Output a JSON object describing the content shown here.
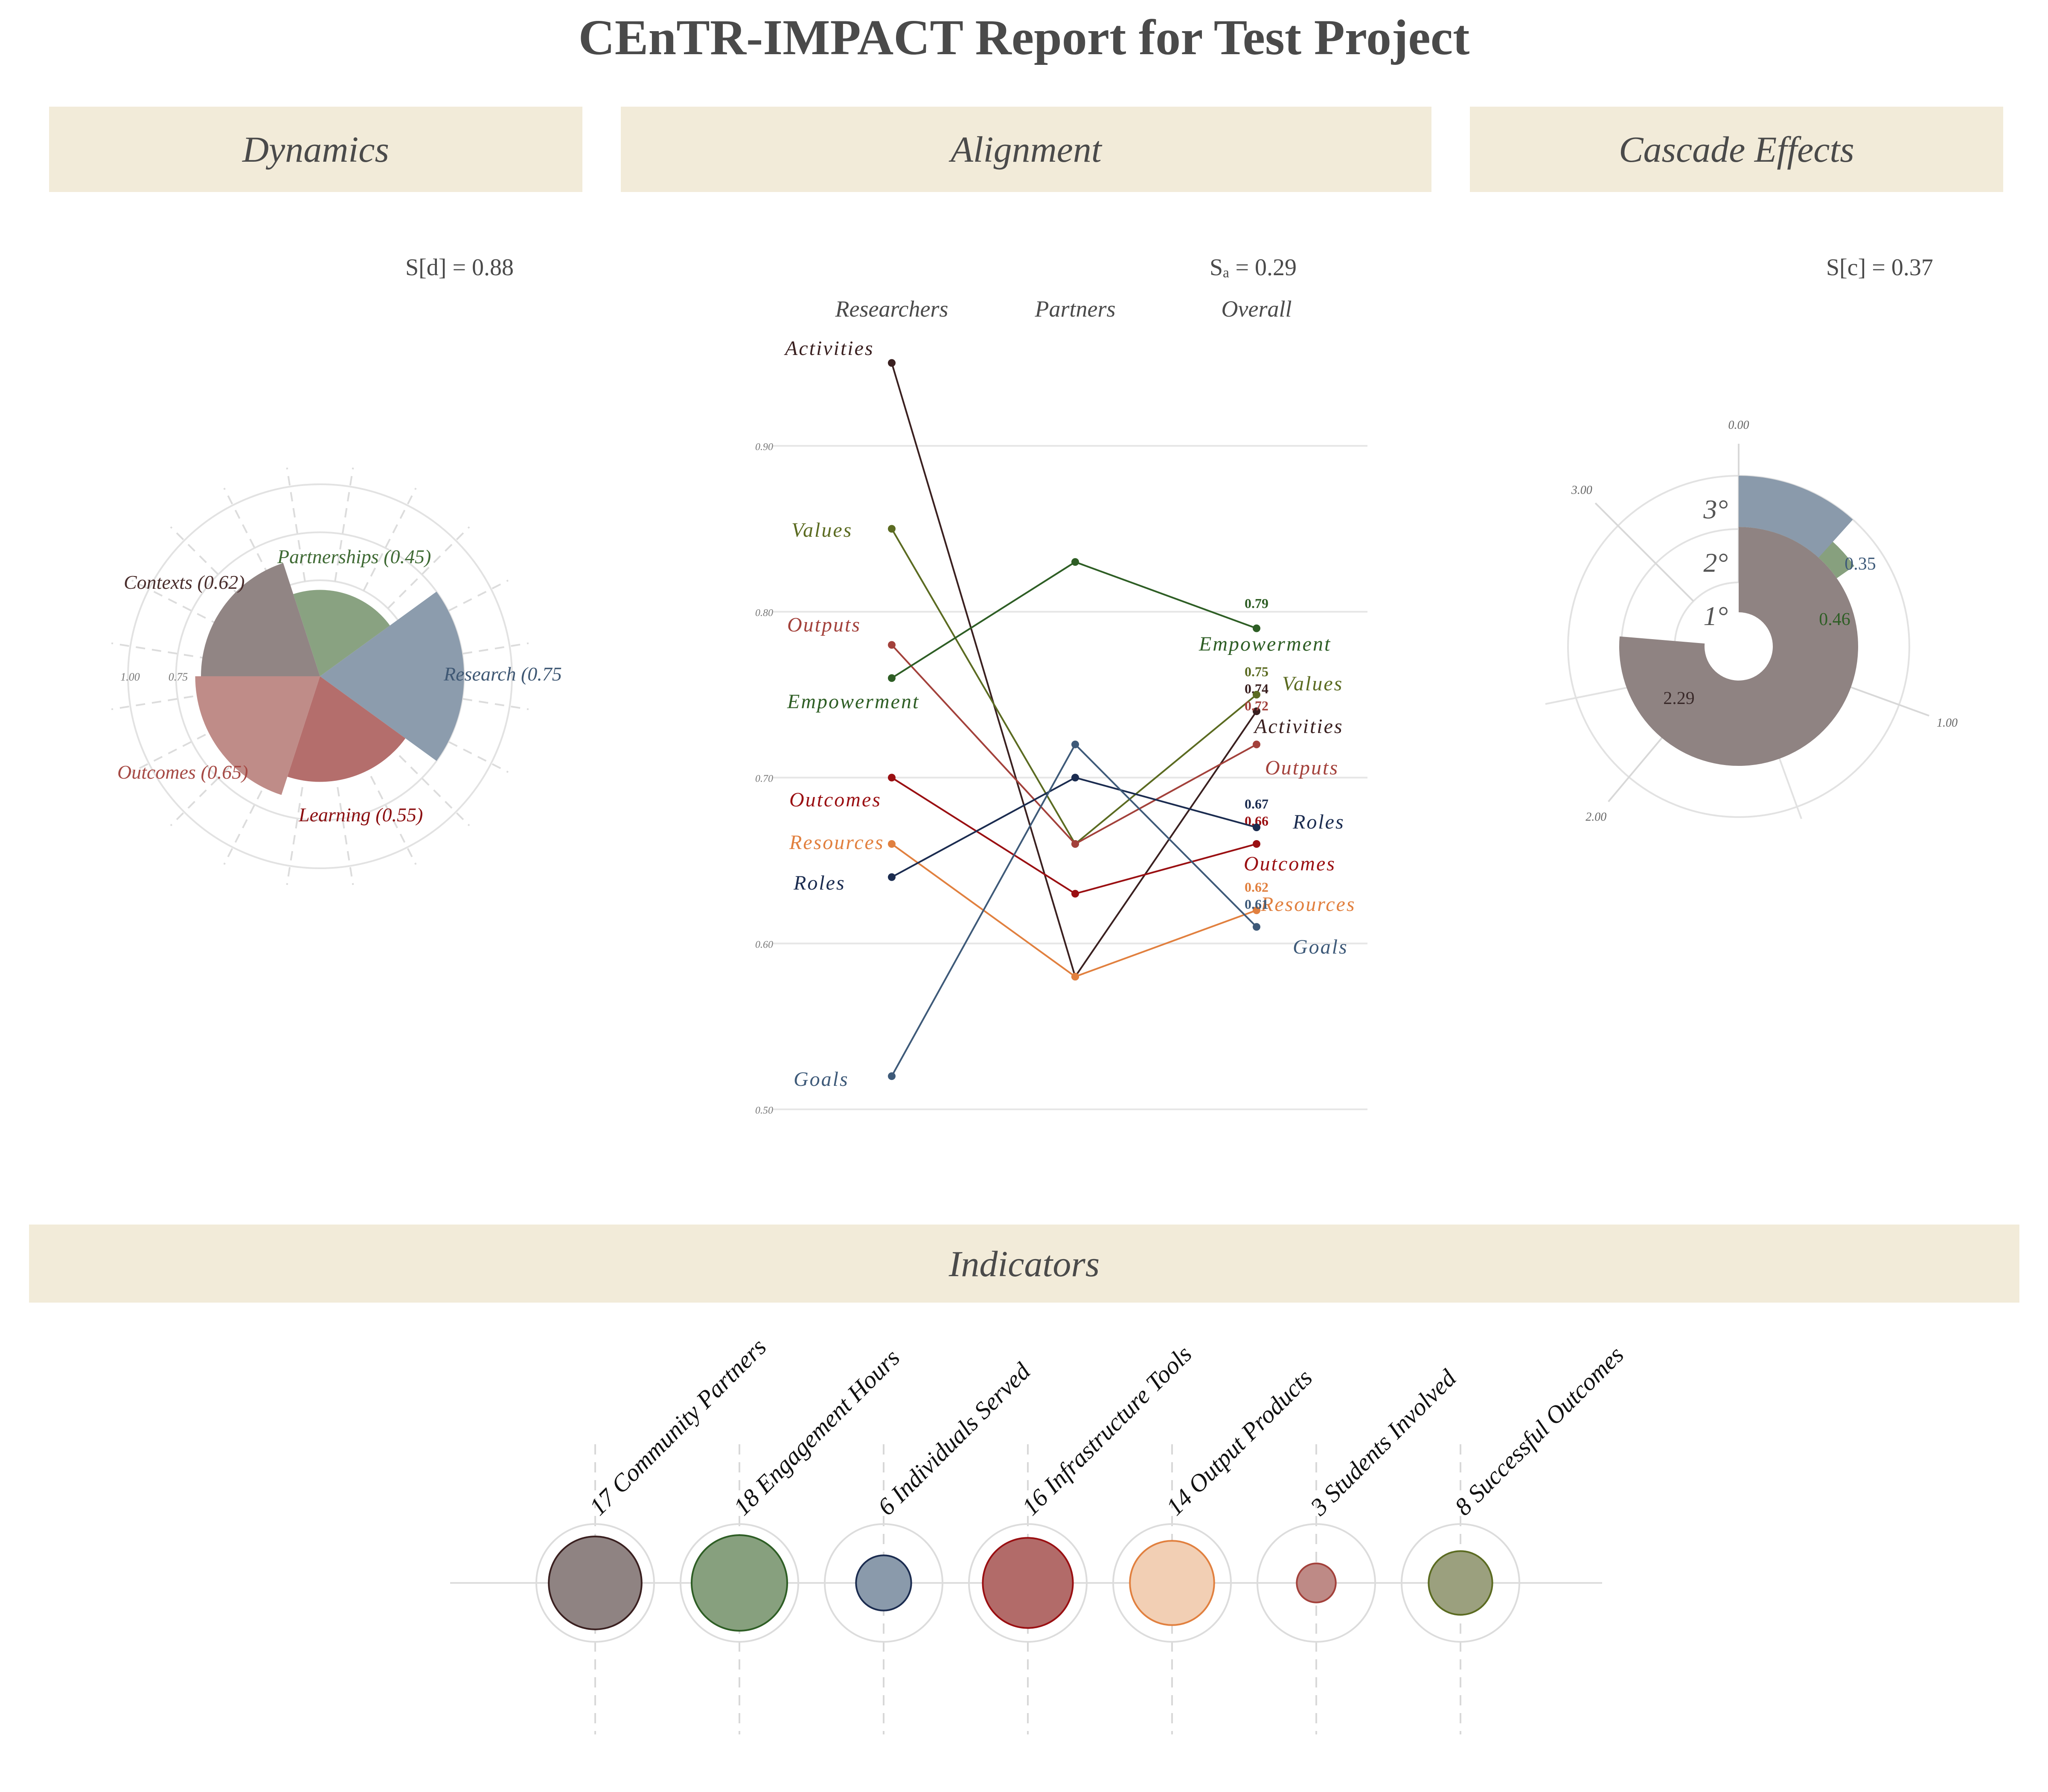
{
  "title": "CEnTR-IMPACT Report for Test Project",
  "panels": {
    "dynamics": "Dynamics",
    "alignment": "Alignment",
    "cascade": "Cascade Effects",
    "indicators": "Indicators"
  },
  "scores": {
    "dynamics": "S[d] = 0.88",
    "alignment": "Sₐ = 0.29",
    "cascade": "S[c] = 0.37"
  },
  "colors": {
    "band": "#f2ebd9",
    "research": "#8a9aab",
    "partnerships": "#87a07e",
    "contexts": "#8f8382",
    "outcomes": "#be8a86",
    "learning": "#b26b69",
    "empowerment": "#2e5e25",
    "values": "#5b6b21",
    "activities": "#3a2020",
    "outputs": "#a3413b",
    "roles": "#1b2c50",
    "outcomes_line": "#9a0f12",
    "resources": "#e1803f",
    "goals": "#3e5a79"
  },
  "chart_data": [
    {
      "id": "dynamics",
      "type": "polar-bar",
      "tick_labels": [
        "1.00",
        "0.75"
      ],
      "ylim": [
        0,
        1
      ],
      "categories": [
        {
          "label": "Research (0.75",
          "value": 0.75,
          "color": "#8a9aab",
          "label_color": "#3f5874"
        },
        {
          "label": "Learning (0.55)",
          "value": 0.55,
          "color": "#b26b69",
          "label_color": "#8b0e10"
        },
        {
          "label": "Outcomes (0.65)",
          "value": 0.65,
          "color": "#be8a86",
          "label_color": "#a64a45"
        },
        {
          "label": "Contexts (0.62)",
          "value": 0.62,
          "color": "#8f8382",
          "label_color": "#4a2e2d"
        },
        {
          "label": "Partnerships (0.45)",
          "value": 0.45,
          "color": "#87a07e",
          "label_color": "#3f6a34"
        }
      ]
    },
    {
      "id": "alignment",
      "type": "line",
      "x_categories": [
        "Researchers",
        "Partners",
        "Overall"
      ],
      "ylim": [
        0.5,
        0.95
      ],
      "y_ticks": [
        "0.50",
        "0.60",
        "0.70",
        "0.80",
        "0.90"
      ],
      "y_tick_values": [
        0.5,
        0.6,
        0.7,
        0.8,
        0.9
      ],
      "series": [
        {
          "name": "Activities",
          "values": [
            0.95,
            0.58,
            0.74
          ],
          "overall_label": "0.74",
          "color": "#3a2020"
        },
        {
          "name": "Values",
          "values": [
            0.85,
            0.66,
            0.75
          ],
          "overall_label": "0.75",
          "color": "#5b6b21"
        },
        {
          "name": "Outputs",
          "values": [
            0.78,
            0.66,
            0.72
          ],
          "overall_label": "0.72",
          "color": "#a3413b"
        },
        {
          "name": "Empowerment",
          "values": [
            0.76,
            0.83,
            0.79
          ],
          "overall_label": "0.79",
          "color": "#2e5e25"
        },
        {
          "name": "Outcomes",
          "values": [
            0.7,
            0.63,
            0.66
          ],
          "overall_label": "0.66",
          "color": "#9a0f12"
        },
        {
          "name": "Resources",
          "values": [
            0.66,
            0.58,
            0.62
          ],
          "overall_label": "0.62",
          "color": "#e1803f"
        },
        {
          "name": "Roles",
          "values": [
            0.64,
            0.7,
            0.67
          ],
          "overall_label": "0.67",
          "color": "#1b2c50"
        },
        {
          "name": "Goals",
          "values": [
            0.52,
            0.72,
            0.61
          ],
          "overall_label": "0.61",
          "color": "#3e5a79"
        }
      ]
    },
    {
      "id": "cascade",
      "type": "polar-bar",
      "tick_labels": [
        "0.00",
        "1.00",
        "2.00",
        "3.00"
      ],
      "ylim": [
        0,
        3
      ],
      "series": [
        {
          "name": "1°",
          "value": 2.29,
          "label": "2.29",
          "color": "#8f8382",
          "label_color": "#3a2a2a"
        },
        {
          "name": "2°",
          "value": 0.46,
          "label": "0.46",
          "color": "#87a07e",
          "label_color": "#2e5e25"
        },
        {
          "name": "3°",
          "value": 0.35,
          "label": "0.35",
          "color": "#8a9aab",
          "label_color": "#3e5a79"
        }
      ]
    },
    {
      "id": "indicators",
      "type": "bubble",
      "items": [
        {
          "value": 17,
          "label": "17 Community Partners",
          "fill": "#8f8382",
          "stroke": "#3a2020"
        },
        {
          "value": 18,
          "label": "18 Engagement Hours",
          "fill": "#87a07e",
          "stroke": "#2e5e25"
        },
        {
          "value": 6,
          "label": "6 Individuals Served",
          "fill": "#8a9aab",
          "stroke": "#1b2c50"
        },
        {
          "value": 16,
          "label": "16 Infrastructure Tools",
          "fill": "#b26b69",
          "stroke": "#9a0f12"
        },
        {
          "value": 14,
          "label": "14 Output Products",
          "fill": "#f2cfb4",
          "stroke": "#e1803f"
        },
        {
          "value": 3,
          "label": "3 Students Involved",
          "fill": "#be8a86",
          "stroke": "#a3413b"
        },
        {
          "value": 8,
          "label": "8 Successful Outcomes",
          "fill": "#9ba07e",
          "stroke": "#5b6b21"
        }
      ]
    }
  ]
}
